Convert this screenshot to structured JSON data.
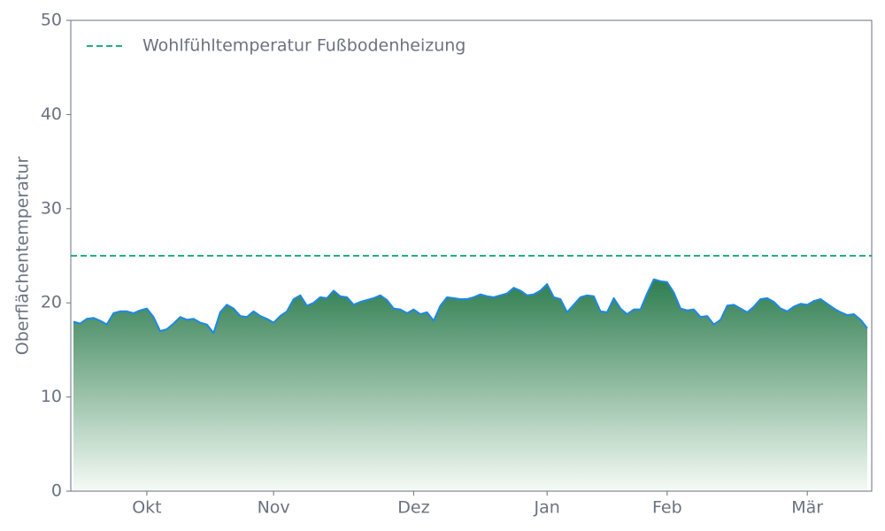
{
  "chart_data": {
    "type": "area",
    "y_label": "Oberflächentemperatur",
    "ylim": [
      0,
      50
    ],
    "yticks": [
      0,
      10,
      20,
      30,
      40,
      50
    ],
    "categories": [
      null,
      null,
      null,
      null,
      null,
      null,
      null,
      null,
      null,
      null,
      null,
      "Okt",
      null,
      null,
      null,
      null,
      null,
      null,
      null,
      null,
      null,
      null,
      null,
      null,
      null,
      null,
      null,
      null,
      null,
      null,
      "Nov",
      null,
      null,
      null,
      null,
      null,
      null,
      null,
      null,
      null,
      null,
      null,
      null,
      null,
      null,
      null,
      null,
      null,
      null,
      null,
      null,
      "Dez",
      null,
      null,
      null,
      null,
      null,
      null,
      null,
      null,
      null,
      null,
      null,
      null,
      null,
      null,
      null,
      null,
      null,
      null,
      null,
      "Jan",
      null,
      null,
      null,
      null,
      null,
      null,
      null,
      null,
      null,
      null,
      null,
      null,
      null,
      null,
      null,
      null,
      null,
      "Feb",
      null,
      null,
      null,
      null,
      null,
      null,
      null,
      null,
      null,
      null,
      null,
      null,
      null,
      null,
      null,
      null,
      null,
      null,
      null,
      null,
      "Mär",
      null,
      null,
      null,
      null,
      null,
      null,
      null,
      null,
      null
    ],
    "values": [
      18.0,
      17.8,
      18.3,
      18.4,
      18.1,
      17.7,
      18.9,
      19.1,
      19.1,
      18.9,
      19.2,
      19.4,
      18.5,
      17.0,
      17.2,
      17.8,
      18.5,
      18.2,
      18.3,
      17.9,
      17.7,
      16.8,
      19.0,
      19.8,
      19.4,
      18.6,
      18.5,
      19.1,
      18.6,
      18.3,
      17.9,
      18.6,
      19.1,
      20.4,
      20.8,
      19.7,
      20.0,
      20.6,
      20.5,
      21.3,
      20.7,
      20.6,
      19.8,
      20.1,
      20.3,
      20.5,
      20.8,
      20.3,
      19.4,
      19.3,
      18.9,
      19.3,
      18.8,
      19.0,
      18.1,
      19.7,
      20.6,
      20.5,
      20.4,
      20.4,
      20.6,
      20.9,
      20.7,
      20.6,
      20.8,
      21.0,
      21.6,
      21.3,
      20.8,
      20.9,
      21.3,
      22.0,
      20.6,
      20.4,
      19.0,
      19.8,
      20.6,
      20.8,
      20.7,
      19.1,
      19.0,
      20.5,
      19.4,
      18.8,
      19.3,
      19.3,
      21.0,
      22.5,
      22.3,
      22.2,
      21.1,
      19.4,
      19.2,
      19.3,
      18.5,
      18.6,
      17.7,
      18.2,
      19.7,
      19.8,
      19.4,
      19.0,
      19.6,
      20.4,
      20.5,
      20.1,
      19.4,
      19.1,
      19.6,
      19.9,
      19.8,
      20.2,
      20.4,
      19.9,
      19.4,
      19.0,
      18.7,
      18.8,
      18.2,
      17.3
    ],
    "color": "#1e88e5",
    "fill_gradient": [
      "#2e7d4f",
      "#f5fbf5"
    ],
    "reference_line": {
      "name": "Wohlfühltemperatur Fußbodenheizung",
      "value": 25,
      "color": "#1fb07f",
      "dashed": true
    },
    "legend": "upper left"
  }
}
